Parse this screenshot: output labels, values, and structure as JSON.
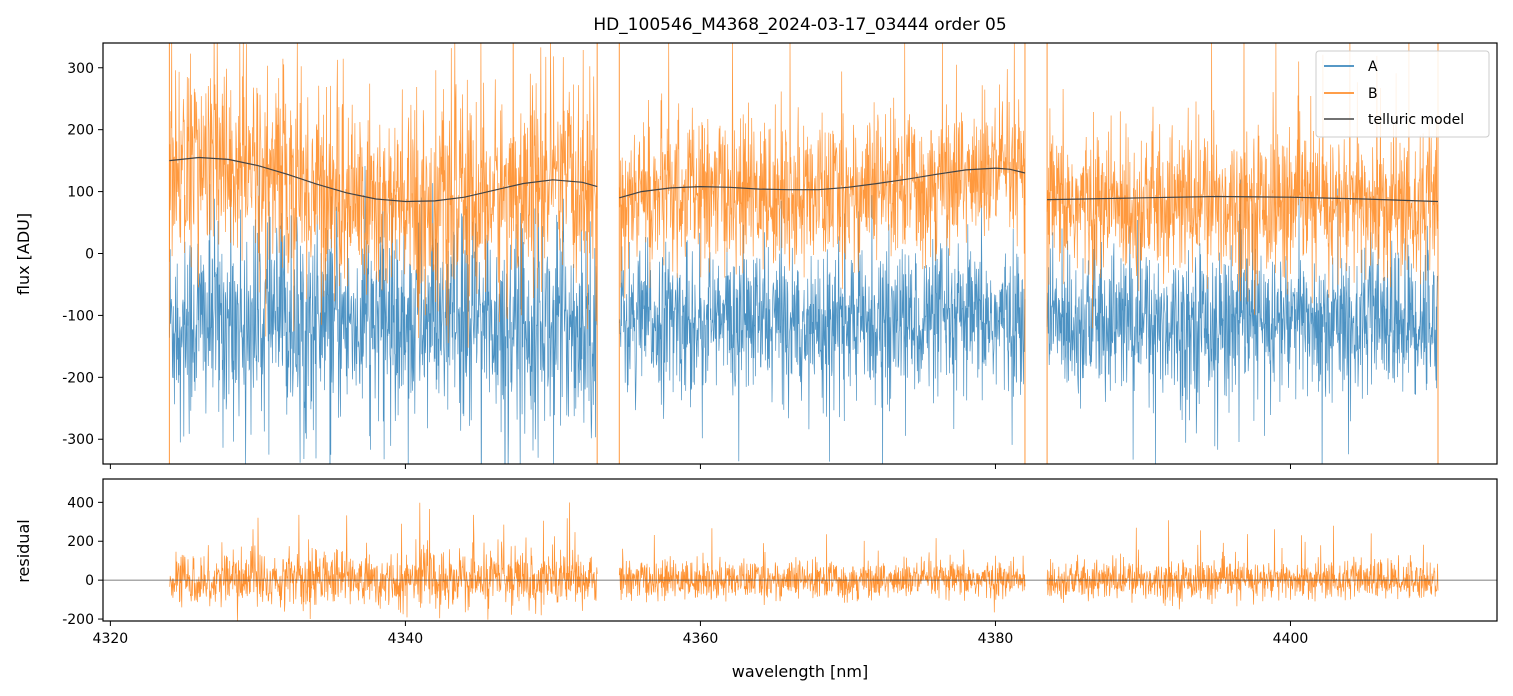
{
  "chart_data": [
    {
      "type": "line",
      "title": "HD_100546_M4368_2024-03-17_03444  order 05",
      "xlabel": "",
      "ylabel": "flux [ADU]",
      "xlim": [
        4319.5,
        4414.0
      ],
      "ylim": [
        -340,
        340
      ],
      "xticks": [
        4320,
        4340,
        4360,
        4380,
        4400
      ],
      "yticks": [
        -300,
        -200,
        -100,
        0,
        100,
        200,
        300
      ],
      "grid": false,
      "legend": "top-right",
      "segments": [
        [
          4324.0,
          4353.0
        ],
        [
          4354.5,
          4382.0
        ],
        [
          4383.5,
          4410.0
        ]
      ],
      "series": [
        {
          "name": "A",
          "color": "#1f77b4",
          "style": "noisy",
          "mean": -110,
          "noise": 60
        },
        {
          "name": "B",
          "color": "#ff7f0e",
          "style": "noisy",
          "mean": 100,
          "noise": 60
        },
        {
          "name": "telluric model",
          "color": "#444444",
          "style": "smooth",
          "points": [
            [
              [
                4324.0,
                150
              ],
              [
                4326.0,
                155
              ],
              [
                4328.0,
                152
              ],
              [
                4330.0,
                142
              ],
              [
                4332.0,
                128
              ],
              [
                4334.0,
                112
              ],
              [
                4336.0,
                98
              ],
              [
                4338.0,
                88
              ],
              [
                4340.0,
                84
              ],
              [
                4342.0,
                85
              ],
              [
                4344.0,
                91
              ],
              [
                4346.0,
                102
              ],
              [
                4348.0,
                113
              ],
              [
                4350.0,
                119
              ],
              [
                4352.0,
                115
              ],
              [
                4353.0,
                108
              ]
            ],
            [
              [
                4354.5,
                90
              ],
              [
                4356.0,
                100
              ],
              [
                4358.0,
                106
              ],
              [
                4360.0,
                108
              ],
              [
                4362.0,
                107
              ],
              [
                4364.0,
                104
              ],
              [
                4366.0,
                103
              ],
              [
                4368.0,
                103
              ],
              [
                4370.0,
                107
              ],
              [
                4372.0,
                113
              ],
              [
                4374.0,
                120
              ],
              [
                4376.0,
                128
              ],
              [
                4378.0,
                135
              ],
              [
                4380.0,
                138
              ],
              [
                4381.0,
                136
              ],
              [
                4382.0,
                130
              ]
            ],
            [
              [
                4383.5,
                87
              ],
              [
                4386.0,
                88
              ],
              [
                4390.0,
                90
              ],
              [
                4395.0,
                92
              ],
              [
                4400.0,
                91
              ],
              [
                4405.0,
                88
              ],
              [
                4410.0,
                84
              ]
            ]
          ]
        }
      ]
    },
    {
      "type": "line",
      "title": "",
      "xlabel": "wavelength [nm]",
      "ylabel": "residual",
      "xlim": [
        4319.5,
        4414.0
      ],
      "ylim": [
        -210,
        520
      ],
      "xticks": [
        4320,
        4340,
        4360,
        4380,
        4400
      ],
      "yticks": [
        -200,
        0,
        200,
        400
      ],
      "grid": false,
      "reference_line": 0,
      "series": [
        {
          "name": "",
          "color": "#ff7f0e",
          "style": "noisy",
          "mean": 0,
          "noise": 50
        }
      ]
    }
  ]
}
